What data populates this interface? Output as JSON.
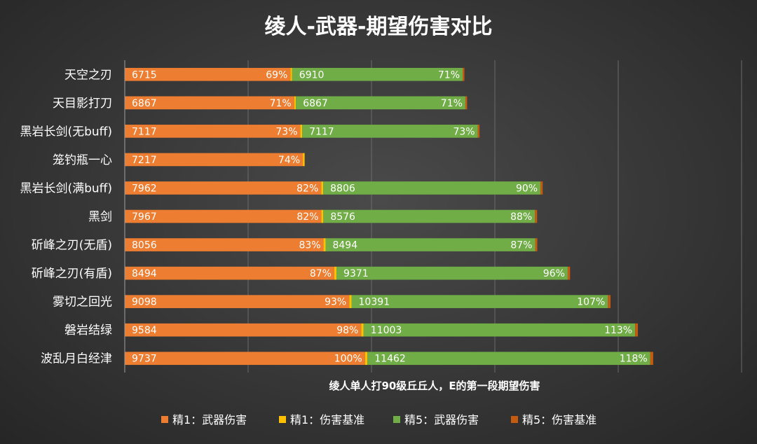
{
  "chart_data": {
    "type": "bar",
    "orientation": "horizontal",
    "stacked": true,
    "title": "绫人-武器-期望伤害对比",
    "xlabel": "绫人单人打90级丘丘人，E的第一段期望伤害",
    "ylabel": "",
    "xlim": [
      0,
      25000
    ],
    "grid": true,
    "legend_position": "bottom",
    "categories": [
      "天空之刃",
      "天目影打刀",
      "黑岩长剑(无buff)",
      "笼钓瓶一心",
      "黑岩长剑(满buff)",
      "黑剑",
      "斫峰之刃(无盾)",
      "斫峰之刃(有盾)",
      "雾切之回光",
      "磐岩结绿",
      "波乱月白经津"
    ],
    "series": [
      {
        "name": "精1：武器伤害",
        "color": "#ED7D31",
        "values": [
          6715,
          6867,
          7117,
          7217,
          7962,
          7967,
          8056,
          8494,
          9098,
          9584,
          9737
        ],
        "labels": [
          "6715",
          "6867",
          "7117",
          "7217",
          "7962",
          "7967",
          "8056",
          "8494",
          "9098",
          "9584",
          "9737"
        ]
      },
      {
        "name": "精1：伤害基准",
        "color": "#FFC000",
        "values": [
          69,
          71,
          73,
          74,
          82,
          82,
          83,
          87,
          93,
          98,
          100
        ],
        "labels": [
          "69%",
          "71%",
          "73%",
          "74%",
          "82%",
          "82%",
          "83%",
          "87%",
          "93%",
          "98%",
          "100%"
        ]
      },
      {
        "name": "精5：武器伤害",
        "color": "#70AD47",
        "values": [
          6910,
          6867,
          7117,
          null,
          8806,
          8576,
          8494,
          9371,
          10391,
          11003,
          11462
        ],
        "labels": [
          "6910",
          "6867",
          "7117",
          "",
          "8806",
          "8576",
          "8494",
          "9371",
          "10391",
          "11003",
          "11462"
        ]
      },
      {
        "name": "精5：伤害基准",
        "color": "#C55A11",
        "values": [
          71,
          71,
          73,
          null,
          90,
          88,
          87,
          96,
          107,
          113,
          118
        ],
        "labels": [
          "71%",
          "71%",
          "73%",
          "",
          "90%",
          "88%",
          "87%",
          "96%",
          "107%",
          "113%",
          "118%"
        ]
      }
    ]
  }
}
